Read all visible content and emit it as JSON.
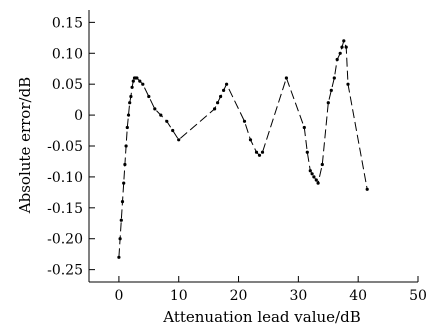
{
  "chart_data": {
    "type": "line",
    "title": "",
    "xlabel": "Attenuation lead value/dB",
    "ylabel": "Absolute error/dB",
    "xlim": [
      -5,
      50
    ],
    "ylim": [
      -0.27,
      0.17
    ],
    "x_ticks": [
      0,
      10,
      20,
      30,
      40,
      50
    ],
    "y_ticks": [
      0.15,
      0.1,
      0.05,
      0,
      -0.05,
      -0.1,
      -0.15,
      -0.2,
      -0.25
    ],
    "x_tick_labels": [
      "0",
      "10",
      "20",
      "30",
      "40",
      "50"
    ],
    "y_tick_labels": [
      "0.15",
      "0.10",
      "0.05",
      "0",
      "-0.05",
      "-0.10",
      "-0.15",
      "-0.20",
      "-0.25"
    ],
    "grid": false,
    "legend": "none",
    "series": [
      {
        "color": "#000000",
        "line_style": "dashed",
        "marker": "dot",
        "x": [
          0,
          0.2,
          0.4,
          0.6,
          0.8,
          1.0,
          1.2,
          1.4,
          1.6,
          1.8,
          2.0,
          2.2,
          2.4,
          2.6,
          2.8,
          3.0,
          3.5,
          4.0,
          5.0,
          6.0,
          7.0,
          8.0,
          9.0,
          10.0,
          16.0,
          16.5,
          17.0,
          17.5,
          18.0,
          21.0,
          22.0,
          23.0,
          23.5,
          24.0,
          28.0,
          31.0,
          31.5,
          32.0,
          32.3,
          32.6,
          33.0,
          33.3,
          34.0,
          35.0,
          35.5,
          36.0,
          36.5,
          37.0,
          37.3,
          37.6,
          38.0,
          38.3,
          41.5
        ],
        "y": [
          -0.23,
          -0.2,
          -0.17,
          -0.14,
          -0.11,
          -0.08,
          -0.05,
          -0.02,
          0.0,
          0.02,
          0.03,
          0.045,
          0.055,
          0.06,
          0.06,
          0.06,
          0.055,
          0.05,
          0.03,
          0.01,
          0.0,
          -0.01,
          -0.025,
          -0.04,
          0.01,
          0.02,
          0.03,
          0.04,
          0.05,
          -0.01,
          -0.04,
          -0.06,
          -0.065,
          -0.06,
          0.06,
          -0.02,
          -0.06,
          -0.09,
          -0.095,
          -0.1,
          -0.105,
          -0.11,
          -0.08,
          0.02,
          0.04,
          0.06,
          0.09,
          0.1,
          0.11,
          0.12,
          0.11,
          0.05,
          -0.12
        ]
      }
    ]
  }
}
